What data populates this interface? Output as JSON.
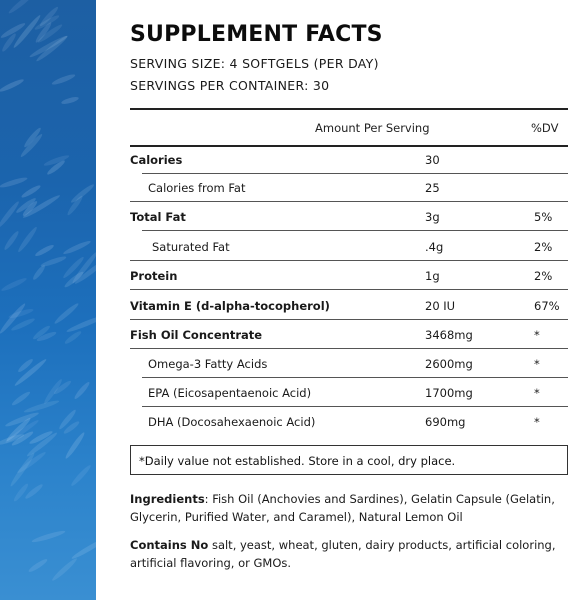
{
  "title": "SUPPLEMENT FACTS",
  "serving_size": "SERVING SIZE: 4 SOFTGELS (PER DAY)",
  "servings_per_container": "SERVINGS PER CONTAINER: 30",
  "table": {
    "header_amount": "Amount Per Serving",
    "header_dv": "%DV",
    "rows": [
      {
        "name": "Calories",
        "amount": "30",
        "dv": ""
      },
      {
        "name": "Calories from Fat",
        "amount": "25",
        "dv": ""
      },
      {
        "name": "Total Fat",
        "amount": "3g",
        "dv": "5%"
      },
      {
        "name": "Saturated Fat",
        "amount": ".4g",
        "dv": "2%"
      },
      {
        "name": "Protein",
        "amount": "1g",
        "dv": "2%"
      },
      {
        "name": "Vitamin E (d-alpha-tocopherol)",
        "amount": "20 IU",
        "dv": "67%"
      },
      {
        "name": "Fish Oil Concentrate",
        "amount": "3468mg",
        "dv": "*"
      },
      {
        "name": "Omega-3 Fatty Acids",
        "amount": "2600mg",
        "dv": "*"
      },
      {
        "name": "EPA (Eicosapentaenoic Acid)",
        "amount": "1700mg",
        "dv": "*"
      },
      {
        "name": "DHA (Docosahexaenoic Acid)",
        "amount": "690mg",
        "dv": "*"
      }
    ]
  },
  "footnote": "*Daily value not established.  Store in a cool, dry place.",
  "ingredients_label": "Ingredients",
  "ingredients_text": ": Fish Oil (Anchovies and Sardines), Gelatin Capsule (Gelatin, Glycerin, Purified Water, and Caramel), Natural Lemon Oil",
  "contains_label": "Contains No",
  "contains_text": " salt, yeast, wheat, gluten, dairy products, artificial coloring, artificial flavoring, or GMOs."
}
